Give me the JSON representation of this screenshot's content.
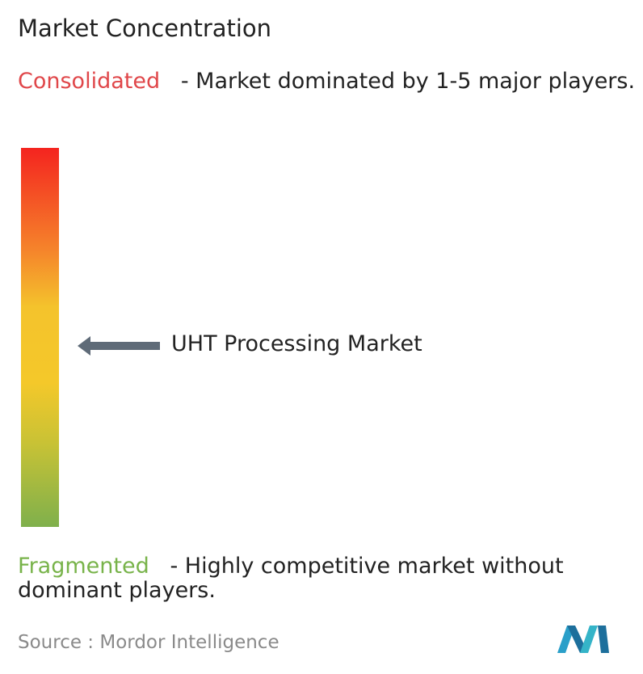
{
  "title": "Market Concentration",
  "top": {
    "label": "Consolidated",
    "description": "- Market dominated by 1-5 major players."
  },
  "marker": {
    "label": "UHT Processing Market"
  },
  "bottom": {
    "label": "Fragmented",
    "description": "- Highly competitive market without dominant players."
  },
  "source": "Source : Mordor Intelligence"
}
